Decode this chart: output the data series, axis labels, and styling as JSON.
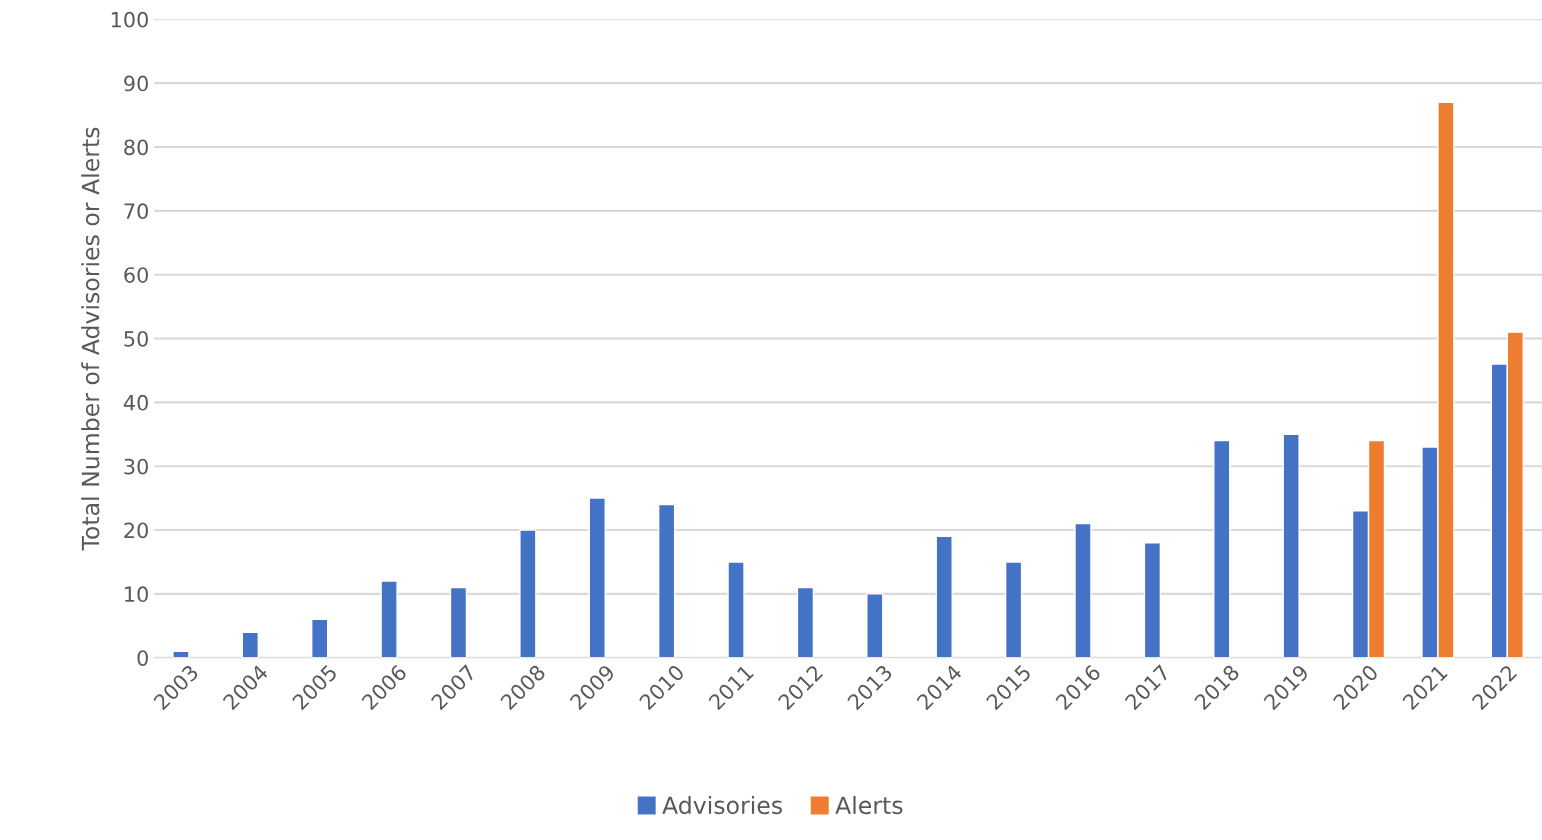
{
  "chart_data": {
    "type": "bar",
    "ylabel": "Total Number of Advisories or Alerts",
    "categories": [
      "2003",
      "2004",
      "2005",
      "2006",
      "2007",
      "2008",
      "2009",
      "2010",
      "2011",
      "2012",
      "2013",
      "2014",
      "2015",
      "2016",
      "2017",
      "2018",
      "2019",
      "2020",
      "2021",
      "2022"
    ],
    "series": [
      {
        "name": "Advisories",
        "color": "#4472c4",
        "values": [
          1,
          4,
          6,
          12,
          11,
          20,
          25,
          24,
          15,
          11,
          10,
          19,
          15,
          21,
          18,
          34,
          35,
          23,
          33,
          46
        ]
      },
      {
        "name": "Alerts",
        "color": "#ed7d31",
        "values": [
          null,
          null,
          null,
          null,
          null,
          null,
          null,
          null,
          null,
          null,
          null,
          null,
          null,
          null,
          null,
          null,
          null,
          34,
          87,
          51
        ]
      }
    ],
    "ylim": [
      0,
      100
    ],
    "yticks": [
      0,
      10,
      20,
      30,
      40,
      50,
      60,
      70,
      80,
      90,
      100
    ],
    "grid": "y",
    "legend": "bottom"
  }
}
